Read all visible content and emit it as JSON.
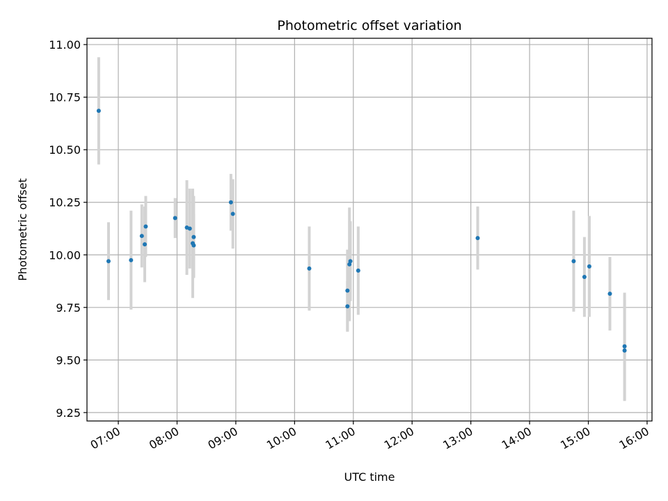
{
  "chart_data": {
    "type": "scatter",
    "title": "Photometric offset variation",
    "xlabel": "UTC time",
    "ylabel": "Photometric offset",
    "grid": true,
    "xlim": [
      "06:28",
      "16:05"
    ],
    "ylim": [
      9.21,
      11.03
    ],
    "x_ticks": [
      "07:00",
      "08:00",
      "09:00",
      "10:00",
      "11:00",
      "12:00",
      "13:00",
      "14:00",
      "15:00",
      "16:00"
    ],
    "y_ticks": [
      9.25,
      9.5,
      9.75,
      10.0,
      10.25,
      10.5,
      10.75,
      11.0
    ],
    "y_tick_labels": [
      "9.25",
      "9.50",
      "9.75",
      "10.00",
      "10.25",
      "10.50",
      "10.75",
      "11.00"
    ],
    "colors": {
      "point": "#1f77b4",
      "errorbar": "#d3d3d3",
      "grid": "#b0b0b0"
    },
    "points": [
      {
        "x": "06:40",
        "y": 10.685,
        "err": 0.255
      },
      {
        "x": "06:50",
        "y": 9.97,
        "err": 0.185
      },
      {
        "x": "07:13",
        "y": 9.975,
        "err": 0.235
      },
      {
        "x": "07:24",
        "y": 10.09,
        "err": 0.15
      },
      {
        "x": "07:27",
        "y": 10.05,
        "err": 0.18
      },
      {
        "x": "07:28",
        "y": 10.135,
        "err": 0.145
      },
      {
        "x": "07:58",
        "y": 10.175,
        "err": 0.095
      },
      {
        "x": "08:10",
        "y": 10.13,
        "err": 0.225
      },
      {
        "x": "08:13",
        "y": 10.125,
        "err": 0.19
      },
      {
        "x": "08:16",
        "y": 10.055,
        "err": 0.26
      },
      {
        "x": "08:17",
        "y": 10.085,
        "err": 0.195
      },
      {
        "x": "08:17",
        "y": 10.045,
        "err": 0.15
      },
      {
        "x": "08:55",
        "y": 10.25,
        "err": 0.135
      },
      {
        "x": "08:57",
        "y": 10.195,
        "err": 0.165
      },
      {
        "x": "10:15",
        "y": 9.935,
        "err": 0.2
      },
      {
        "x": "10:54",
        "y": 9.755,
        "err": 0.12
      },
      {
        "x": "10:54",
        "y": 9.83,
        "err": 0.195
      },
      {
        "x": "10:56",
        "y": 9.955,
        "err": 0.27
      },
      {
        "x": "10:57",
        "y": 9.97,
        "err": 0.19
      },
      {
        "x": "11:05",
        "y": 9.925,
        "err": 0.21
      },
      {
        "x": "13:07",
        "y": 10.08,
        "err": 0.15
      },
      {
        "x": "14:45",
        "y": 9.97,
        "err": 0.24
      },
      {
        "x": "14:56",
        "y": 9.895,
        "err": 0.19
      },
      {
        "x": "15:01",
        "y": 9.945,
        "err": 0.24
      },
      {
        "x": "15:22",
        "y": 9.815,
        "err": 0.175
      },
      {
        "x": "15:37",
        "y": 9.565,
        "err": 0.255
      },
      {
        "x": "15:37",
        "y": 9.545,
        "err": 0.24
      }
    ]
  }
}
